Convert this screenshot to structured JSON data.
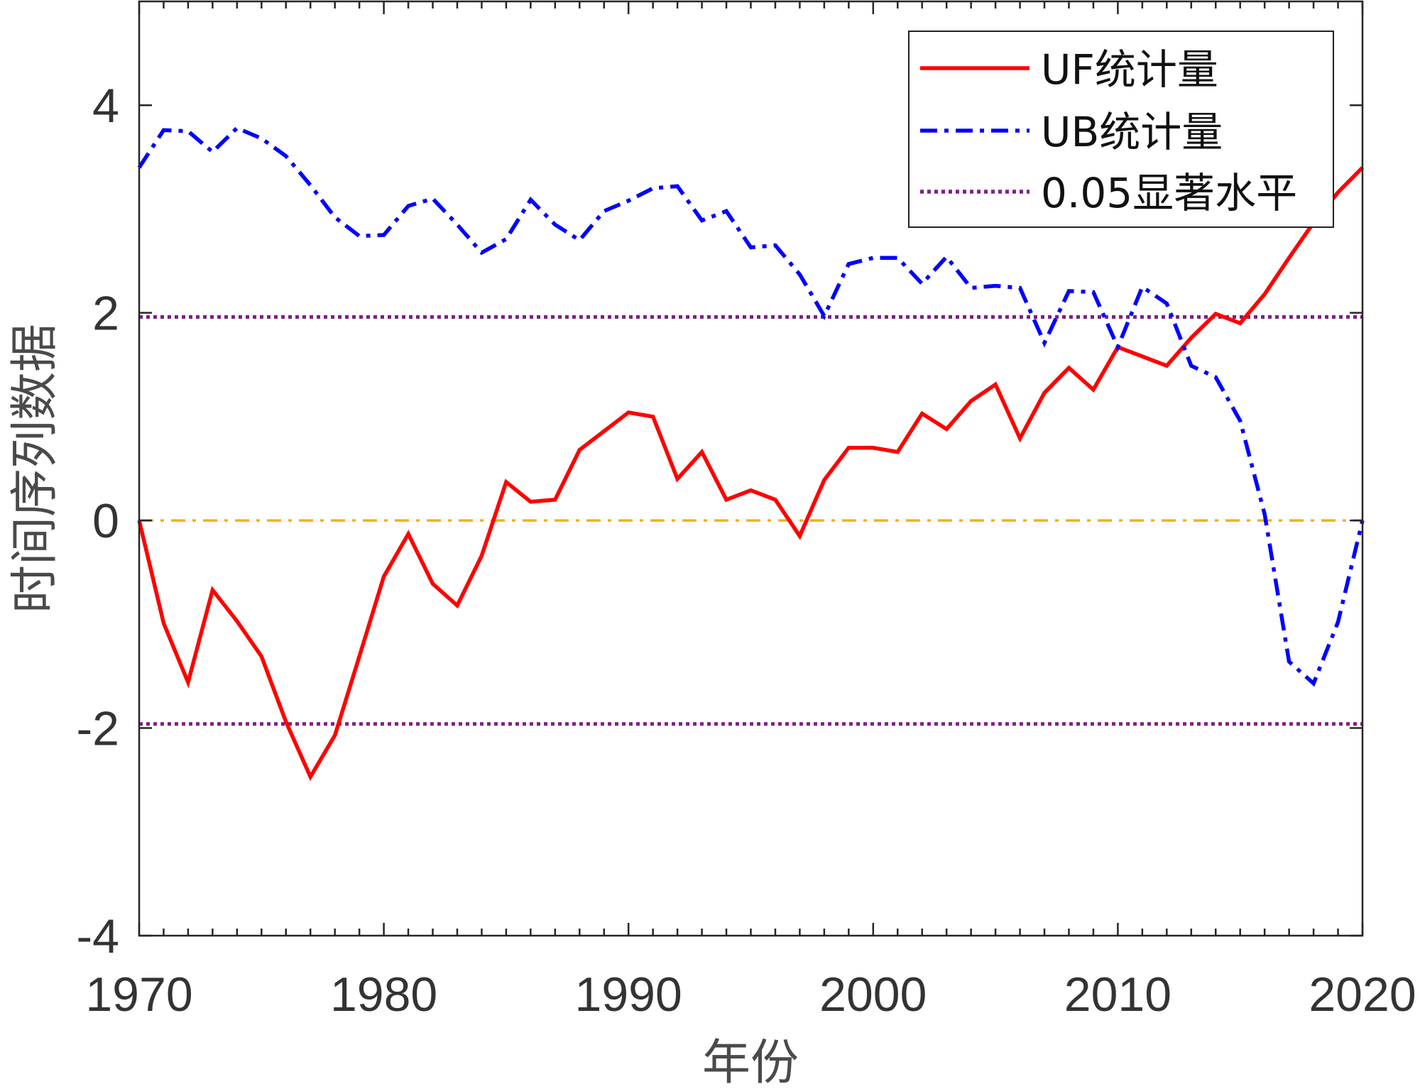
{
  "chart_data": {
    "type": "line",
    "xlabel": "年份",
    "ylabel": "时间序列数据",
    "xlim": [
      1970,
      2020
    ],
    "ylim": [
      -4,
      5
    ],
    "xticks": [
      1970,
      1980,
      1990,
      2000,
      2010,
      2020
    ],
    "yticks": [
      -4,
      -2,
      0,
      2,
      4
    ],
    "xtick_labels": [
      "1970",
      "1980",
      "1990",
      "2000",
      "2010",
      "2020"
    ],
    "ytick_labels": [
      "-4",
      "-2",
      "0",
      "2",
      "4"
    ],
    "grid": false,
    "legend_position": "top-right",
    "x": [
      1970,
      1971,
      1972,
      1973,
      1974,
      1975,
      1976,
      1977,
      1978,
      1979,
      1980,
      1981,
      1982,
      1983,
      1984,
      1985,
      1986,
      1987,
      1988,
      1989,
      1990,
      1991,
      1992,
      1993,
      1994,
      1995,
      1996,
      1997,
      1998,
      1999,
      2000,
      2001,
      2002,
      2003,
      2004,
      2005,
      2006,
      2007,
      2008,
      2009,
      2010,
      2011,
      2012,
      2013,
      2014,
      2015,
      2016,
      2017,
      2018,
      2019,
      2020
    ],
    "series": [
      {
        "name": "UF统计量",
        "color": "#ff0000",
        "style": "solid",
        "values": [
          0,
          -0.99,
          -1.56,
          -0.67,
          -0.97,
          -1.31,
          -1.94,
          -2.47,
          -2.07,
          -1.31,
          -0.54,
          -0.13,
          -0.61,
          -0.82,
          -0.34,
          0.37,
          0.18,
          0.2,
          0.68,
          0.86,
          1.04,
          1.0,
          0.4,
          0.66,
          0.2,
          0.29,
          0.2,
          -0.15,
          0.39,
          0.7,
          0.7,
          0.66,
          1.03,
          0.88,
          1.15,
          1.31,
          0.79,
          1.23,
          1.47,
          1.26,
          1.67,
          1.58,
          1.49,
          1.76,
          1.99,
          1.9,
          2.18,
          2.53,
          2.87,
          3.16,
          3.4
        ]
      },
      {
        "name": "UB统计量",
        "color": "#0000ff",
        "style": "dashdot",
        "values": [
          3.4,
          3.76,
          3.75,
          3.55,
          3.78,
          3.68,
          3.51,
          3.23,
          2.92,
          2.74,
          2.75,
          3.03,
          3.1,
          2.85,
          2.58,
          2.71,
          3.09,
          2.85,
          2.7,
          2.98,
          3.08,
          3.2,
          3.22,
          2.89,
          2.98,
          2.63,
          2.65,
          2.37,
          1.97,
          2.47,
          2.53,
          2.53,
          2.28,
          2.54,
          2.24,
          2.26,
          2.24,
          1.71,
          2.21,
          2.2,
          1.67,
          2.25,
          2.09,
          1.49,
          1.38,
          0.96,
          0.06,
          -1.36,
          -1.57,
          -0.98,
          0
        ]
      }
    ],
    "reference_lines": [
      {
        "name": "0.05显著水平",
        "color": "#7e1f86",
        "style": "dotted",
        "y": [
          1.96,
          -1.96
        ]
      },
      {
        "color": "#edb120",
        "style": "dashdot",
        "y": [
          0
        ]
      }
    ],
    "legend": [
      "UF统计量",
      "UB统计量",
      "0.05显著水平"
    ]
  }
}
